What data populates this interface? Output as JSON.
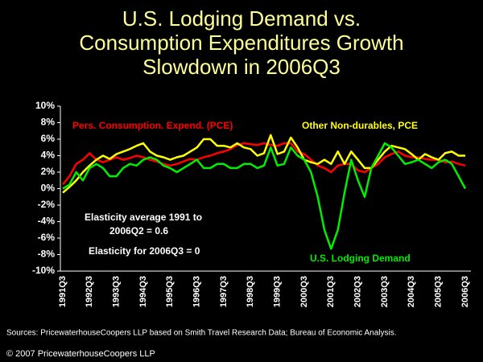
{
  "chart_data": {
    "type": "line",
    "title": "U.S. Lodging Demand vs. Consumption Expenditures Growth Slowdown in 2006Q3",
    "categories": [
      "1991Q3",
      null,
      null,
      null,
      "1992Q3",
      null,
      null,
      null,
      "1993Q3",
      null,
      null,
      null,
      "1994Q3",
      null,
      null,
      null,
      "1995Q3",
      null,
      null,
      null,
      "1996Q3",
      null,
      null,
      null,
      "1997Q3",
      null,
      null,
      null,
      "1998Q3",
      null,
      null,
      null,
      "1999Q3",
      null,
      null,
      null,
      "2000Q3",
      null,
      null,
      null,
      "2001Q3",
      null,
      null,
      null,
      "2002Q3",
      null,
      null,
      null,
      "2003Q3",
      null,
      null,
      null,
      "2004Q3",
      null,
      null,
      null,
      "2005Q3",
      null,
      null,
      null,
      "2006Q3"
    ],
    "series": [
      {
        "name": "Pers. Consumption. Expend. (PCE)",
        "color": "#ff0000",
        "values": [
          0.5,
          1.5,
          3,
          3.5,
          4.3,
          3.5,
          3.2,
          3.5,
          3.8,
          3.5,
          3.7,
          4,
          3.8,
          3.5,
          3.3,
          3,
          2.8,
          3,
          3.3,
          3.6,
          3.5,
          3.8,
          4,
          4.3,
          4.5,
          4.8,
          5.3,
          5.5,
          5.4,
          5.3,
          5.5,
          5.3,
          5.2,
          5.5,
          5.5,
          4.5,
          4.2,
          3.5,
          2.8,
          2.5,
          2,
          2.8,
          3,
          3,
          2.2,
          2,
          2.5,
          3,
          3.8,
          4.2,
          4.5,
          4,
          3.8,
          3.8,
          3.6,
          3.5,
          3.5,
          3.2,
          3.3,
          3,
          2.8
        ]
      },
      {
        "name": "Other Non-durables, PCE",
        "color": "#ffff00",
        "values": [
          -0.5,
          0.2,
          1,
          2,
          2.8,
          3.5,
          4,
          3.6,
          4.2,
          4.5,
          4.8,
          5.2,
          5.5,
          4.5,
          4,
          3.8,
          3.5,
          3.8,
          4,
          4.5,
          5,
          6,
          6,
          5.2,
          5.2,
          5,
          5.5,
          5,
          4.8,
          4,
          4.3,
          6.5,
          4.2,
          4.5,
          6.2,
          5,
          3.5,
          3.2,
          3,
          3.5,
          3,
          4.5,
          3,
          4.5,
          3.5,
          2.5,
          2.5,
          3.5,
          4.5,
          5.2,
          5,
          4.8,
          4.2,
          3.5,
          4.2,
          3.8,
          3.5,
          4.3,
          4.5,
          4,
          4
        ]
      },
      {
        "name": "U.S. Lodging Demand",
        "color": "#00ee00",
        "values": [
          0,
          0.5,
          2,
          1,
          2.5,
          3,
          2.5,
          1.5,
          1.5,
          2.5,
          3,
          2.8,
          3.5,
          3.8,
          3.5,
          2.8,
          2.5,
          2,
          2.5,
          3,
          3.5,
          2.5,
          2.5,
          3,
          3,
          2.5,
          2.5,
          3,
          3,
          2.5,
          2.8,
          5,
          2.8,
          3,
          5,
          4,
          3.5,
          2,
          -1,
          -5,
          -7.3,
          -5,
          -0.5,
          3.5,
          1,
          -1,
          2.5,
          4,
          5.5,
          5,
          4,
          3,
          3.2,
          3.5,
          3,
          2.5,
          3.2,
          3.5,
          3,
          1.5,
          0
        ]
      }
    ],
    "ylim": [
      -10,
      10
    ],
    "yticks": [
      {
        "value": 10,
        "label": "10%"
      },
      {
        "value": 8,
        "label": "8%"
      },
      {
        "value": 6,
        "label": "6%"
      },
      {
        "value": 4,
        "label": "4%"
      },
      {
        "value": 2,
        "label": "2%"
      },
      {
        "value": 0,
        "label": "0%"
      },
      {
        "value": -2,
        "label": "-2%"
      },
      {
        "value": -4,
        "label": "-4%"
      },
      {
        "value": -6,
        "label": "-6%"
      },
      {
        "value": -8,
        "label": "-8%"
      },
      {
        "value": -10,
        "label": "-10%"
      }
    ],
    "grid": false,
    "annotations": [
      "Elasticity average 1991 to",
      "2006Q2 = 0.6",
      "Elasticity for 2006Q3 = 0"
    ],
    "source": "Sources: PricewaterhouseCoopers LLP based on Smith Travel Research Data; Bureau of Economic Analysis.",
    "copyright": "© 2007 PricewaterhouseCoopers LLP"
  }
}
